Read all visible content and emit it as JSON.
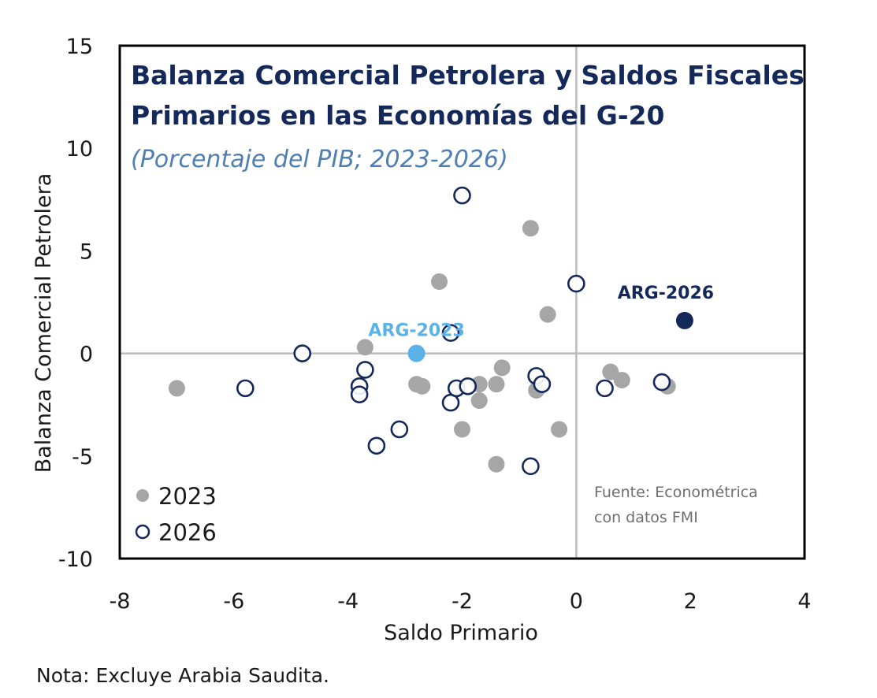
{
  "chart_data": {
    "type": "scatter",
    "title": [
      "Balanza Comercial Petrolera y Saldos Fiscales",
      "Primarios en las Economías del G-20"
    ],
    "subtitle": "(Porcentaje del PIB; 2023-2026)",
    "xlabel": "Saldo Primario",
    "ylabel": "Balanza Comercial Petrolera",
    "xlim": [
      -8,
      4
    ],
    "ylim": [
      -10,
      15
    ],
    "xticks": [
      -8,
      -6,
      -4,
      -2,
      0,
      2,
      4
    ],
    "yticks": [
      15,
      10,
      5,
      0,
      -5,
      -10
    ],
    "grid": false,
    "reference_lines": {
      "x": 0,
      "y": 0
    },
    "legend_position": "bottom-left",
    "colors": {
      "series_2023": "#a6a6a6",
      "series_2026_stroke": "#14285a",
      "arg_2023": "#5bb2e6",
      "arg_2026": "#14285a",
      "title": "#14285a",
      "subtitle": "#4f7fb2",
      "reference_line": "#bcbcbc"
    },
    "series": [
      {
        "name": "2023",
        "marker": "filled-grey",
        "points": [
          {
            "x": -7.0,
            "y": -1.7
          },
          {
            "x": -3.7,
            "y": 0.3
          },
          {
            "x": -2.4,
            "y": 3.5
          },
          {
            "x": -2.8,
            "y": -1.5
          },
          {
            "x": -2.7,
            "y": -1.6
          },
          {
            "x": -2.0,
            "y": -3.7
          },
          {
            "x": -1.7,
            "y": -1.5
          },
          {
            "x": -1.7,
            "y": -2.3
          },
          {
            "x": -1.3,
            "y": -0.7
          },
          {
            "x": -1.4,
            "y": -1.5
          },
          {
            "x": -1.4,
            "y": -5.4
          },
          {
            "x": -0.8,
            "y": 6.1
          },
          {
            "x": -0.7,
            "y": -1.8
          },
          {
            "x": -0.5,
            "y": 1.9
          },
          {
            "x": -0.3,
            "y": -3.7
          },
          {
            "x": 0.6,
            "y": -0.9
          },
          {
            "x": 0.8,
            "y": -1.3
          },
          {
            "x": 1.6,
            "y": -1.6
          }
        ]
      },
      {
        "name": "2026",
        "marker": "open-navy",
        "points": [
          {
            "x": -5.8,
            "y": -1.7
          },
          {
            "x": -4.8,
            "y": 0.0
          },
          {
            "x": -3.7,
            "y": -0.8
          },
          {
            "x": -3.8,
            "y": -1.6
          },
          {
            "x": -3.8,
            "y": -2.0
          },
          {
            "x": -3.5,
            "y": -4.5
          },
          {
            "x": -3.1,
            "y": -3.7
          },
          {
            "x": -2.0,
            "y": 7.7
          },
          {
            "x": -2.2,
            "y": 1.0
          },
          {
            "x": -2.2,
            "y": -2.4
          },
          {
            "x": -2.1,
            "y": -1.7
          },
          {
            "x": -1.9,
            "y": -1.6
          },
          {
            "x": -0.7,
            "y": -1.1
          },
          {
            "x": -0.6,
            "y": -1.5
          },
          {
            "x": -0.8,
            "y": -5.5
          },
          {
            "x": 0.0,
            "y": 3.4
          },
          {
            "x": 0.5,
            "y": -1.7
          },
          {
            "x": 1.5,
            "y": -1.4
          }
        ]
      }
    ],
    "highlights": [
      {
        "label": "ARG-2023",
        "x": -2.8,
        "y": 0.0,
        "marker": "filled-lightblue"
      },
      {
        "label": "ARG-2026",
        "x": 1.9,
        "y": 1.6,
        "marker": "filled-navy"
      }
    ],
    "legend": [
      {
        "label": "2023",
        "marker": "filled-grey"
      },
      {
        "label": "2026",
        "marker": "open-navy"
      }
    ],
    "source": [
      "Fuente: Econométrica",
      "con datos FMI"
    ],
    "note": "Nota: Excluye Arabia Saudita."
  }
}
